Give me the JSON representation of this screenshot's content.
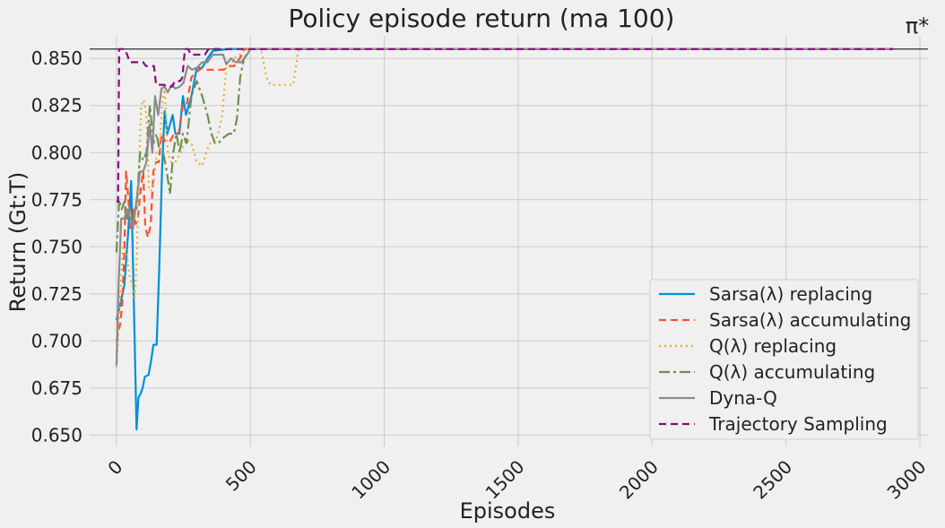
{
  "chart_data": {
    "type": "line",
    "title": "Policy episode return (ma 100)",
    "xlabel": "Episodes",
    "ylabel": "Return (Gt:T)",
    "xlim": [
      -100,
      3030
    ],
    "ylim": [
      0.644,
      0.862
    ],
    "xticks": [
      0,
      500,
      1000,
      1500,
      2000,
      2500,
      3000
    ],
    "xtick_labels": [
      "0",
      "500",
      "1000",
      "1500",
      "2000",
      "2500",
      "3000"
    ],
    "yticks": [
      0.65,
      0.675,
      0.7,
      0.725,
      0.75,
      0.775,
      0.8,
      0.825,
      0.85
    ],
    "ytick_labels": [
      "0.650",
      "0.675",
      "0.700",
      "0.725",
      "0.750",
      "0.775",
      "0.800",
      "0.825",
      "0.850"
    ],
    "grid": true,
    "legend_position": "lower-right",
    "reference_line": {
      "label": "π*",
      "y": 0.855
    },
    "series": [
      {
        "name": "Sarsa(λ) replacing",
        "color": "#008fd5",
        "dash": "solid",
        "points": [
          [
            0,
            0.711
          ],
          [
            15,
            0.72
          ],
          [
            30,
            0.73
          ],
          [
            45,
            0.76
          ],
          [
            55,
            0.785
          ],
          [
            62,
            0.74
          ],
          [
            68,
            0.7
          ],
          [
            75,
            0.653
          ],
          [
            82,
            0.67
          ],
          [
            90,
            0.672
          ],
          [
            98,
            0.675
          ],
          [
            106,
            0.681
          ],
          [
            120,
            0.682
          ],
          [
            130,
            0.69
          ],
          [
            138,
            0.698
          ],
          [
            150,
            0.698
          ],
          [
            160,
            0.74
          ],
          [
            170,
            0.79
          ],
          [
            180,
            0.822
          ],
          [
            190,
            0.81
          ],
          [
            200,
            0.815
          ],
          [
            210,
            0.82
          ],
          [
            220,
            0.81
          ],
          [
            235,
            0.81
          ],
          [
            248,
            0.83
          ],
          [
            260,
            0.82
          ],
          [
            280,
            0.83
          ],
          [
            300,
            0.845
          ],
          [
            320,
            0.845
          ],
          [
            340,
            0.85
          ],
          [
            360,
            0.854
          ],
          [
            420,
            0.855
          ],
          [
            2900,
            0.855
          ]
        ]
      },
      {
        "name": "Sarsa(λ) accumulating",
        "color": "#fc4f30",
        "dash": "8,5",
        "points": [
          [
            0,
            0.7
          ],
          [
            8,
            0.705
          ],
          [
            15,
            0.71
          ],
          [
            22,
            0.72
          ],
          [
            30,
            0.75
          ],
          [
            36,
            0.79
          ],
          [
            42,
            0.78
          ],
          [
            52,
            0.76
          ],
          [
            62,
            0.77
          ],
          [
            72,
            0.762
          ],
          [
            80,
            0.765
          ],
          [
            90,
            0.78
          ],
          [
            100,
            0.79
          ],
          [
            108,
            0.76
          ],
          [
            118,
            0.755
          ],
          [
            128,
            0.762
          ],
          [
            138,
            0.79
          ],
          [
            148,
            0.795
          ],
          [
            158,
            0.795
          ],
          [
            168,
            0.81
          ],
          [
            182,
            0.806
          ],
          [
            200,
            0.806
          ],
          [
            215,
            0.81
          ],
          [
            232,
            0.81
          ],
          [
            248,
            0.825
          ],
          [
            262,
            0.825
          ],
          [
            280,
            0.84
          ],
          [
            300,
            0.843
          ],
          [
            320,
            0.845
          ],
          [
            340,
            0.844
          ],
          [
            380,
            0.844
          ],
          [
            400,
            0.844
          ],
          [
            420,
            0.846
          ],
          [
            440,
            0.846
          ],
          [
            460,
            0.85
          ],
          [
            480,
            0.855
          ],
          [
            2900,
            0.855
          ]
        ]
      },
      {
        "name": "Q(λ) replacing",
        "color": "#e5ae38",
        "dash": "2,4",
        "points": [
          [
            0,
            0.686
          ],
          [
            12,
            0.72
          ],
          [
            25,
            0.75
          ],
          [
            38,
            0.748
          ],
          [
            48,
            0.735
          ],
          [
            58,
            0.73
          ],
          [
            68,
            0.722
          ],
          [
            75,
            0.74
          ],
          [
            82,
            0.78
          ],
          [
            92,
            0.825
          ],
          [
            102,
            0.828
          ],
          [
            112,
            0.82
          ],
          [
            122,
            0.78
          ],
          [
            130,
            0.78
          ],
          [
            140,
            0.785
          ],
          [
            150,
            0.8
          ],
          [
            160,
            0.8
          ],
          [
            170,
            0.825
          ],
          [
            180,
            0.835
          ],
          [
            192,
            0.8
          ],
          [
            204,
            0.795
          ],
          [
            220,
            0.795
          ],
          [
            240,
            0.8
          ],
          [
            260,
            0.807
          ],
          [
            280,
            0.805
          ],
          [
            300,
            0.795
          ],
          [
            320,
            0.793
          ],
          [
            335,
            0.8
          ],
          [
            350,
            0.805
          ],
          [
            365,
            0.805
          ],
          [
            380,
            0.81
          ],
          [
            395,
            0.82
          ],
          [
            410,
            0.845
          ],
          [
            425,
            0.845
          ],
          [
            440,
            0.85
          ],
          [
            460,
            0.852
          ],
          [
            480,
            0.855
          ],
          [
            540,
            0.855
          ],
          [
            560,
            0.84
          ],
          [
            575,
            0.836
          ],
          [
            660,
            0.836
          ],
          [
            680,
            0.855
          ],
          [
            2900,
            0.855
          ]
        ]
      },
      {
        "name": "Q(λ) accumulating",
        "color": "#6d904f",
        "dash": "12,4,3,4",
        "points": [
          [
            0,
            0.747
          ],
          [
            10,
            0.775
          ],
          [
            20,
            0.77
          ],
          [
            30,
            0.774
          ],
          [
            40,
            0.765
          ],
          [
            50,
            0.77
          ],
          [
            62,
            0.765
          ],
          [
            75,
            0.77
          ],
          [
            88,
            0.8
          ],
          [
            100,
            0.796
          ],
          [
            112,
            0.8
          ],
          [
            125,
            0.825
          ],
          [
            138,
            0.805
          ],
          [
            150,
            0.81
          ],
          [
            162,
            0.8
          ],
          [
            175,
            0.8
          ],
          [
            188,
            0.79
          ],
          [
            200,
            0.778
          ],
          [
            212,
            0.8
          ],
          [
            224,
            0.81
          ],
          [
            236,
            0.8
          ],
          [
            248,
            0.81
          ],
          [
            262,
            0.805
          ],
          [
            280,
            0.83
          ],
          [
            300,
            0.838
          ],
          [
            320,
            0.83
          ],
          [
            340,
            0.82
          ],
          [
            355,
            0.81
          ],
          [
            368,
            0.805
          ],
          [
            380,
            0.805
          ],
          [
            400,
            0.808
          ],
          [
            420,
            0.81
          ],
          [
            438,
            0.81
          ],
          [
            450,
            0.818
          ],
          [
            462,
            0.84
          ],
          [
            476,
            0.85
          ],
          [
            500,
            0.855
          ],
          [
            2900,
            0.855
          ]
        ]
      },
      {
        "name": "Dyna-Q",
        "color": "#8b8b8b",
        "dash": "solid",
        "points": [
          [
            0,
            0.687
          ],
          [
            8,
            0.73
          ],
          [
            18,
            0.765
          ],
          [
            30,
            0.765
          ],
          [
            40,
            0.77
          ],
          [
            52,
            0.765
          ],
          [
            62,
            0.76
          ],
          [
            75,
            0.775
          ],
          [
            88,
            0.79
          ],
          [
            100,
            0.79
          ],
          [
            112,
            0.795
          ],
          [
            124,
            0.815
          ],
          [
            134,
            0.8
          ],
          [
            144,
            0.83
          ],
          [
            156,
            0.82
          ],
          [
            168,
            0.834
          ],
          [
            180,
            0.835
          ],
          [
            192,
            0.832
          ],
          [
            206,
            0.836
          ],
          [
            220,
            0.834
          ],
          [
            236,
            0.835
          ],
          [
            250,
            0.837
          ],
          [
            266,
            0.846
          ],
          [
            282,
            0.844
          ],
          [
            300,
            0.845
          ],
          [
            320,
            0.848
          ],
          [
            340,
            0.848
          ],
          [
            360,
            0.852
          ],
          [
            380,
            0.852
          ],
          [
            398,
            0.852
          ],
          [
            410,
            0.847
          ],
          [
            428,
            0.85
          ],
          [
            446,
            0.848
          ],
          [
            466,
            0.848
          ],
          [
            488,
            0.852
          ],
          [
            500,
            0.855
          ],
          [
            2900,
            0.855
          ]
        ]
      },
      {
        "name": "Trajectory Sampling",
        "color": "#810f7c",
        "dash": "8,5",
        "points": [
          [
            0,
            0.774
          ],
          [
            6,
            0.774
          ],
          [
            10,
            0.855
          ],
          [
            30,
            0.855
          ],
          [
            40,
            0.852
          ],
          [
            50,
            0.848
          ],
          [
            100,
            0.848
          ],
          [
            110,
            0.846
          ],
          [
            140,
            0.846
          ],
          [
            148,
            0.836
          ],
          [
            178,
            0.836
          ],
          [
            190,
            0.835
          ],
          [
            208,
            0.835
          ],
          [
            218,
            0.838
          ],
          [
            238,
            0.838
          ],
          [
            246,
            0.84
          ],
          [
            256,
            0.855
          ],
          [
            268,
            0.855
          ],
          [
            278,
            0.852
          ],
          [
            330,
            0.852
          ],
          [
            344,
            0.855
          ],
          [
            2900,
            0.855
          ]
        ]
      }
    ]
  }
}
